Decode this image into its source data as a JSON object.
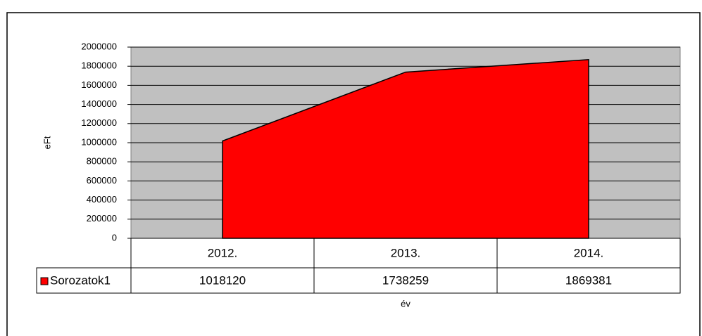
{
  "chart_data": {
    "type": "area",
    "categories": [
      "2012.",
      "2013.",
      "2014."
    ],
    "series": [
      {
        "name": "Sorozatok1",
        "color": "#ff0000",
        "values": [
          1018120,
          1738259,
          1869381
        ]
      }
    ],
    "ylim": [
      0,
      2000000
    ],
    "yticks": [
      0,
      200000,
      400000,
      600000,
      800000,
      1000000,
      1200000,
      1400000,
      1600000,
      1800000,
      2000000
    ],
    "grid": true,
    "plot_background": "#c0c0c0",
    "xlabel": "év",
    "ylabel": "eFt"
  }
}
